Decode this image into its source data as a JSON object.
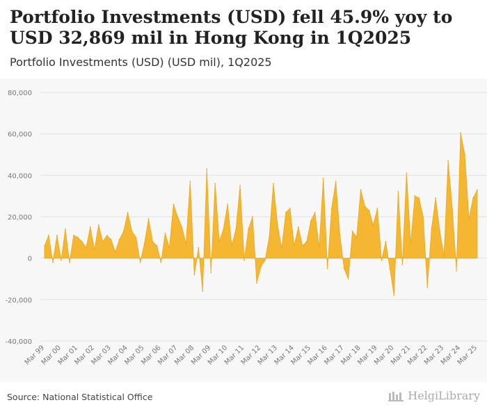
{
  "header": {
    "title": "Portfolio Investments (USD) fell 45.9% yoy to USD 32,869 mil in Hong Kong in 1Q2025",
    "subtitle": "Portfolio Investments (USD) (USD mil), 1Q2025"
  },
  "footer": {
    "source": "Source: National Statistical Office",
    "logo_text": "HelgiLibrary"
  },
  "colors": {
    "fill": "#f5b731",
    "stroke": "#e9a816",
    "grid": "#e2e2e2",
    "axis_text": "#777777"
  },
  "chart_data": {
    "type": "area",
    "title": "Portfolio Investments (USD) (USD mil), 1Q2025",
    "xlabel": "",
    "ylabel": "",
    "ylim": [
      -40000,
      80000
    ],
    "yticks": [
      -40000,
      -20000,
      0,
      20000,
      40000,
      60000,
      80000
    ],
    "ytick_labels": [
      "-40,000",
      "-20,000",
      "0",
      "20,000",
      "40,000",
      "60,000",
      "80,000"
    ],
    "grid": true,
    "start_period": "Mar 99",
    "x_tick_labels": [
      "Mar 99",
      "Mar 00",
      "Mar 01",
      "Mar 02",
      "Mar 03",
      "Mar 04",
      "Mar 05",
      "Mar 06",
      "Mar 07",
      "Mar 08",
      "Mar 09",
      "Mar 10",
      "Mar 11",
      "Mar 12",
      "Mar 13",
      "Mar 14",
      "Mar 15",
      "Mar 16",
      "Mar 17",
      "Mar 18",
      "Mar 19",
      "Mar 20",
      "Mar 21",
      "Mar 22",
      "Mar 23",
      "Mar 24",
      "Mar 25"
    ],
    "series": [
      {
        "name": "Portfolio Investments (USD)",
        "values": [
          6000,
          11000,
          -2000,
          11000,
          -1000,
          14000,
          -2000,
          11000,
          10000,
          8000,
          5000,
          15000,
          4000,
          16000,
          8000,
          11000,
          9000,
          3000,
          9000,
          13000,
          22000,
          13000,
          10000,
          -2000,
          7000,
          19000,
          8000,
          6000,
          -2000,
          12000,
          5000,
          26000,
          20000,
          15000,
          7000,
          37000,
          -8000,
          5000,
          -16000,
          43000,
          -7000,
          36000,
          8000,
          14000,
          26000,
          6000,
          14000,
          35000,
          -1000,
          14000,
          20000,
          -12000,
          -4000,
          -1000,
          10000,
          36000,
          16000,
          5000,
          22000,
          24000,
          6000,
          15000,
          6000,
          8000,
          18000,
          22000,
          5000,
          38500,
          -5000,
          24000,
          37000,
          11000,
          -5000,
          -10000,
          13000,
          10000,
          33000,
          25000,
          23000,
          16000,
          24000,
          -1000,
          8000,
          -5000,
          -18000,
          32000,
          -3000,
          41000,
          7000,
          30000,
          29000,
          20000,
          -14000,
          14000,
          29000,
          13000,
          1000,
          47000,
          24000,
          -6000,
          60500,
          50000,
          19000,
          29000,
          32869
        ]
      }
    ]
  }
}
